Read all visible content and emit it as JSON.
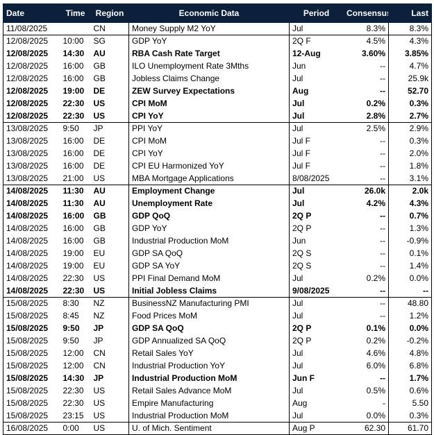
{
  "columns": [
    "Date",
    "Time",
    "Region",
    "Economic Data",
    "Period",
    "Consensus",
    "Last"
  ],
  "rows": [
    {
      "date": "11/08/2025",
      "time": "",
      "region": "CN",
      "event": "Money Supply M2 YoY",
      "period": "Jul",
      "consensus": "8.3%",
      "last": "8.3%",
      "bold": false,
      "day_start": false
    },
    {
      "date": "12/08/2025",
      "time": "10:00",
      "region": "SG",
      "event": "GDP YoY",
      "period": "2Q F",
      "consensus": "4.5%",
      "last": "4.3%",
      "bold": false,
      "day_start": true
    },
    {
      "date": "12/08/2025",
      "time": "14:30",
      "region": "AU",
      "event": "RBA Cash Rate Target",
      "period": "12-Aug",
      "consensus": "3.60%",
      "last": "3.85%",
      "bold": true,
      "day_start": false
    },
    {
      "date": "12/08/2025",
      "time": "16:00",
      "region": "GB",
      "event": "ILO Unemployment Rate 3Mths",
      "period": "Jun",
      "consensus": "--",
      "last": "4.7%",
      "bold": false,
      "day_start": false
    },
    {
      "date": "12/08/2025",
      "time": "16:00",
      "region": "GB",
      "event": "Jobless Claims Change",
      "period": "Jul",
      "consensus": "--",
      "last": "25.9k",
      "bold": false,
      "day_start": false
    },
    {
      "date": "12/08/2025",
      "time": "19:00",
      "region": "DE",
      "event": "ZEW Survey Expectations",
      "period": "Aug",
      "consensus": "--",
      "last": "52.70",
      "bold": true,
      "day_start": false
    },
    {
      "date": "12/08/2025",
      "time": "22:30",
      "region": "US",
      "event": "CPI MoM",
      "period": "Jul",
      "consensus": "0.2%",
      "last": "0.3%",
      "bold": true,
      "day_start": false
    },
    {
      "date": "12/08/2025",
      "time": "22:30",
      "region": "US",
      "event": "CPI YoY",
      "period": "Jul",
      "consensus": "2.8%",
      "last": "2.7%",
      "bold": true,
      "day_start": false
    },
    {
      "date": "13/08/2025",
      "time": "9:50",
      "region": "JP",
      "event": "PPI YoY",
      "period": "Jul",
      "consensus": "2.5%",
      "last": "2.9%",
      "bold": false,
      "day_start": true
    },
    {
      "date": "13/08/2025",
      "time": "16:00",
      "region": "DE",
      "event": "CPI MoM",
      "period": "Jul F",
      "consensus": "--",
      "last": "0.3%",
      "bold": false,
      "day_start": false
    },
    {
      "date": "13/08/2025",
      "time": "16:00",
      "region": "DE",
      "event": "CPI YoY",
      "period": "Jul F",
      "consensus": "--",
      "last": "2.0%",
      "bold": false,
      "day_start": false
    },
    {
      "date": "13/08/2025",
      "time": "16:00",
      "region": "DE",
      "event": "CPI EU Harmonized YoY",
      "period": "Jul F",
      "consensus": "--",
      "last": "1.8%",
      "bold": false,
      "day_start": false
    },
    {
      "date": "13/08/2025",
      "time": "21:00",
      "region": "US",
      "event": "MBA Mortgage Applications",
      "period": "8/08/2025",
      "consensus": "--",
      "last": "3.1%",
      "bold": false,
      "day_start": false
    },
    {
      "date": "14/08/2025",
      "time": "11:30",
      "region": "AU",
      "event": "Employment Change",
      "period": "Jul",
      "consensus": "26.0k",
      "last": "2.0k",
      "bold": true,
      "day_start": true
    },
    {
      "date": "14/08/2025",
      "time": "11:30",
      "region": "AU",
      "event": "Unemployment Rate",
      "period": "Jul",
      "consensus": "4.2%",
      "last": "4.3%",
      "bold": true,
      "day_start": false
    },
    {
      "date": "14/08/2025",
      "time": "16:00",
      "region": "GB",
      "event": "GDP QoQ",
      "period": "2Q P",
      "consensus": "--",
      "last": "0.7%",
      "bold": true,
      "day_start": false
    },
    {
      "date": "14/08/2025",
      "time": "16:00",
      "region": "GB",
      "event": "GDP YoY",
      "period": "2Q P",
      "consensus": "--",
      "last": "1.3%",
      "bold": false,
      "day_start": false
    },
    {
      "date": "14/08/2025",
      "time": "16:00",
      "region": "GB",
      "event": "Industrial Production MoM",
      "period": "Jun",
      "consensus": "--",
      "last": "-0.9%",
      "bold": false,
      "day_start": false
    },
    {
      "date": "14/08/2025",
      "time": "19:00",
      "region": "EU",
      "event": "GDP SA QoQ",
      "period": "2Q S",
      "consensus": "--",
      "last": "0.1%",
      "bold": false,
      "day_start": false
    },
    {
      "date": "14/08/2025",
      "time": "19:00",
      "region": "EU",
      "event": "GDP SA YoY",
      "period": "2Q S",
      "consensus": "--",
      "last": "1.4%",
      "bold": false,
      "day_start": false
    },
    {
      "date": "14/08/2025",
      "time": "22:30",
      "region": "US",
      "event": "PPI Final Demand MoM",
      "period": "Jul",
      "consensus": "0.2%",
      "last": "0.0%",
      "bold": false,
      "day_start": false
    },
    {
      "date": "14/08/2025",
      "time": "22:30",
      "region": "US",
      "event": "Initial Jobless Claims",
      "period": "9/08/2025",
      "consensus": "--",
      "last": "--",
      "bold": true,
      "day_start": false
    },
    {
      "date": "15/08/2025",
      "time": "8:30",
      "region": "NZ",
      "event": "BusinessNZ Manufacturing PMI",
      "period": "Jul",
      "consensus": "--",
      "last": "48.80",
      "bold": false,
      "day_start": true
    },
    {
      "date": "15/08/2025",
      "time": "8:45",
      "region": "NZ",
      "event": "Food Prices MoM",
      "period": "Jul",
      "consensus": "--",
      "last": "1.2%",
      "bold": false,
      "day_start": false
    },
    {
      "date": "15/08/2025",
      "time": "9:50",
      "region": "JP",
      "event": "GDP SA QoQ",
      "period": "2Q P",
      "consensus": "0.1%",
      "last": "0.0%",
      "bold": true,
      "day_start": false
    },
    {
      "date": "15/08/2025",
      "time": "9:50",
      "region": "JP",
      "event": "GDP Annualized SA QoQ",
      "period": "2Q P",
      "consensus": "0.2%",
      "last": "-0.2%",
      "bold": false,
      "day_start": false
    },
    {
      "date": "15/08/2025",
      "time": "12:00",
      "region": "CN",
      "event": "Retail Sales YoY",
      "period": "Jul",
      "consensus": "4.6%",
      "last": "4.8%",
      "bold": false,
      "day_start": false
    },
    {
      "date": "15/08/2025",
      "time": "12:00",
      "region": "CN",
      "event": "Industrial Production YoY",
      "period": "Jul",
      "consensus": "6.0%",
      "last": "6.8%",
      "bold": false,
      "day_start": false
    },
    {
      "date": "15/08/2025",
      "time": "14:30",
      "region": "JP",
      "event": "Industrial Production MoM",
      "period": "Jun F",
      "consensus": "--",
      "last": "1.7%",
      "bold": true,
      "day_start": false
    },
    {
      "date": "15/08/2025",
      "time": "22:30",
      "region": "US",
      "event": "Retail Sales Advance MoM",
      "period": "Jul",
      "consensus": "0.5%",
      "last": "0.6%",
      "bold": false,
      "day_start": false
    },
    {
      "date": "15/08/2025",
      "time": "22:30",
      "region": "US",
      "event": "Empire Manufacturing",
      "period": "Aug",
      "consensus": "-",
      "last": "5.50",
      "bold": false,
      "day_start": false
    },
    {
      "date": "15/08/2025",
      "time": "23:15",
      "region": "US",
      "event": "Industrial Production MoM",
      "period": "Jul",
      "consensus": "0.0%",
      "last": "0.3%",
      "bold": false,
      "day_start": false
    },
    {
      "date": "16/08/2025",
      "time": "0:00",
      "region": "US",
      "event": "U. of Mich. Sentiment",
      "period": "Aug P",
      "consensus": "62.30",
      "last": "61.70",
      "bold": false,
      "day_start": true
    }
  ]
}
